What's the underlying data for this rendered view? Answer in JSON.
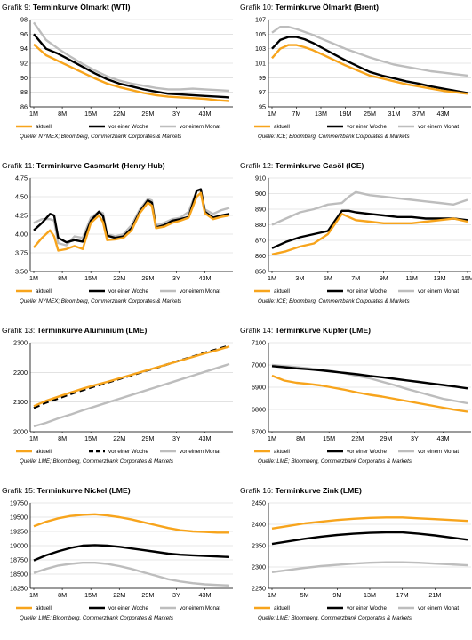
{
  "colors": {
    "aktuell": "#F7A41C",
    "woche": "#000000",
    "monat": "#BDBDBD",
    "grid": "#D0D0D0"
  },
  "chart_data": [
    {
      "type": "line",
      "prefix": "Grafik 9:",
      "title": "Terminkurve Ölmarkt (WTI)",
      "ylim": [
        86,
        98
      ],
      "yticks": [
        86,
        88,
        90,
        92,
        94,
        96,
        98
      ],
      "xticks": [
        "1M",
        "8M",
        "15M",
        "22M",
        "29M",
        "3Y",
        "43M"
      ],
      "grid": true,
      "source": "Quelle: NYMEX; Bloomberg, Commerzbank Corporates & Markets",
      "x": [
        "1M",
        "4M",
        "7M",
        "10M",
        "13M",
        "16M",
        "19M",
        "22M",
        "25M",
        "28M",
        "31M",
        "34M",
        "37M",
        "40M",
        "43M",
        "46M",
        "49M"
      ],
      "series": [
        {
          "name": "aktuell",
          "style": "aktuell",
          "values": [
            94.6,
            93.1,
            92.3,
            91.5,
            90.7,
            89.9,
            89.2,
            88.7,
            88.3,
            87.9,
            87.6,
            87.4,
            87.3,
            87.2,
            87.1,
            86.9,
            86.8
          ]
        },
        {
          "name": "vor einer Woche",
          "style": "woche",
          "values": [
            96.0,
            94.0,
            93.3,
            92.4,
            91.5,
            90.6,
            89.8,
            89.2,
            88.8,
            88.4,
            88.1,
            87.8,
            87.7,
            87.6,
            87.5,
            87.4,
            87.3
          ]
        },
        {
          "name": "vor einem Monat",
          "style": "monat",
          "values": [
            97.6,
            95.2,
            94.0,
            92.9,
            91.9,
            91.0,
            90.2,
            89.6,
            89.2,
            88.9,
            88.6,
            88.4,
            88.4,
            88.5,
            88.4,
            88.3,
            88.2
          ]
        }
      ]
    },
    {
      "type": "line",
      "prefix": "Grafik 10:",
      "title": "Terminkurve Ölmarkt (Brent)",
      "ylim": [
        95,
        107
      ],
      "yticks": [
        95,
        97,
        99,
        101,
        103,
        105,
        107
      ],
      "xticks": [
        "1M",
        "7M",
        "13M",
        "19M",
        "25M",
        "31M",
        "37M",
        "43M"
      ],
      "grid": true,
      "source": "Quelle: ICE; Bloomberg, Commerzbank Corporates & Markets",
      "x": [
        "1M",
        "3M",
        "5M",
        "7M",
        "9M",
        "11M",
        "13M",
        "16M",
        "19M",
        "22M",
        "25M",
        "28M",
        "31M",
        "34M",
        "37M",
        "40M",
        "43M",
        "46M",
        "49M"
      ],
      "series": [
        {
          "name": "aktuell",
          "style": "aktuell",
          "values": [
            101.7,
            103.0,
            103.5,
            103.5,
            103.2,
            102.8,
            102.3,
            101.5,
            100.7,
            100.0,
            99.3,
            98.9,
            98.5,
            98.1,
            97.8,
            97.5,
            97.2,
            97.0,
            96.8
          ]
        },
        {
          "name": "vor einer Woche",
          "style": "woche",
          "values": [
            103.0,
            104.2,
            104.6,
            104.6,
            104.3,
            103.8,
            103.2,
            102.3,
            101.4,
            100.6,
            99.8,
            99.3,
            98.9,
            98.5,
            98.2,
            97.8,
            97.5,
            97.2,
            96.9
          ]
        },
        {
          "name": "vor einem Monat",
          "style": "monat",
          "values": [
            105.2,
            106.0,
            106.0,
            105.7,
            105.3,
            104.9,
            104.4,
            103.7,
            103.0,
            102.4,
            101.8,
            101.3,
            100.8,
            100.5,
            100.2,
            99.9,
            99.7,
            99.5,
            99.3
          ]
        }
      ]
    },
    {
      "type": "line",
      "prefix": "Grafik 11:",
      "title": "Terminkurve Gasmarkt (Henry Hub)",
      "ylim": [
        3.5,
        4.75
      ],
      "yticks": [
        3.5,
        3.75,
        4.0,
        4.25,
        4.5,
        4.75
      ],
      "ydec": 2,
      "xticks": [
        "1M",
        "8M",
        "15M",
        "22M",
        "29M",
        "3Y",
        "43M"
      ],
      "grid": true,
      "source": "Quelle: NYMEX; Bloomberg, Commerzbank Corporates & Markets",
      "x": [
        "1M",
        "3M",
        "5M",
        "6M",
        "7M",
        "9M",
        "11M",
        "13M",
        "15M",
        "17M",
        "18M",
        "19M",
        "21M",
        "23M",
        "25M",
        "27M",
        "29M",
        "30M",
        "31M",
        "33M",
        "35M",
        "37M",
        "39M",
        "41M",
        "42M",
        "43M",
        "45M",
        "47M",
        "49M"
      ],
      "series": [
        {
          "name": "aktuell",
          "style": "aktuell",
          "values": [
            3.82,
            3.95,
            4.05,
            3.97,
            3.78,
            3.8,
            3.84,
            3.8,
            4.15,
            4.25,
            4.16,
            3.92,
            3.93,
            3.95,
            4.05,
            4.28,
            4.42,
            4.38,
            4.08,
            4.1,
            4.15,
            4.18,
            4.22,
            4.5,
            4.55,
            4.28,
            4.2,
            4.23,
            4.25
          ]
        },
        {
          "name": "vor einer Woche",
          "style": "woche",
          "values": [
            4.05,
            4.15,
            4.27,
            4.25,
            3.95,
            3.89,
            3.92,
            3.9,
            4.18,
            4.3,
            4.24,
            3.98,
            3.95,
            3.97,
            4.08,
            4.3,
            4.45,
            4.42,
            4.09,
            4.12,
            4.18,
            4.2,
            4.23,
            4.58,
            4.6,
            4.3,
            4.22,
            4.25,
            4.27
          ]
        },
        {
          "name": "vor einem Monat",
          "style": "monat",
          "values": [
            4.15,
            4.2,
            4.2,
            4.18,
            3.88,
            3.85,
            3.97,
            3.95,
            4.22,
            4.3,
            4.28,
            4.0,
            3.97,
            4.0,
            4.12,
            4.33,
            4.47,
            4.45,
            4.12,
            4.15,
            4.2,
            4.22,
            4.3,
            4.58,
            4.58,
            4.33,
            4.27,
            4.32,
            4.35
          ]
        }
      ]
    },
    {
      "type": "line",
      "prefix": "Grafik 12:",
      "title": "Terminkurve Gasöl (ICE)",
      "ylim": [
        850,
        910
      ],
      "yticks": [
        850,
        860,
        870,
        880,
        890,
        900,
        910
      ],
      "xticks": [
        "1M",
        "3M",
        "5M",
        "7M",
        "9M",
        "11M",
        "13M",
        "15M"
      ],
      "grid": true,
      "source": "Quelle: ICE; Bloomberg, Commerzbank Corporates & Markets",
      "x": [
        "1M",
        "2M",
        "3M",
        "4M",
        "5M",
        "6M",
        "6.5M",
        "7M",
        "8M",
        "9M",
        "10M",
        "11M",
        "12M",
        "13M",
        "14M",
        "15M"
      ],
      "series": [
        {
          "name": "aktuell",
          "style": "aktuell",
          "values": [
            861,
            863,
            866,
            868,
            874,
            887,
            885,
            883,
            882,
            881,
            881,
            881,
            882,
            883,
            884,
            882
          ]
        },
        {
          "name": "vor einer Woche",
          "style": "woche",
          "values": [
            865,
            869,
            872,
            874,
            876,
            889,
            889,
            888,
            887,
            886,
            885,
            885,
            884,
            884,
            884,
            883
          ]
        },
        {
          "name": "vor einem Monat",
          "style": "monat",
          "values": [
            880,
            884,
            888,
            890,
            893,
            894,
            898,
            901,
            899,
            898,
            897,
            896,
            895,
            894,
            893,
            896
          ]
        }
      ]
    },
    {
      "type": "line",
      "prefix": "Grafik 13:",
      "title": "Terminkurve Aluminium (LME)",
      "ylim": [
        2000,
        2300
      ],
      "yticks": [
        2000,
        2100,
        2200,
        2300
      ],
      "xticks": [
        "1M",
        "8M",
        "15M",
        "22M",
        "29M",
        "3Y",
        "43M"
      ],
      "grid": true,
      "source": "Quelle: LME; Bloomberg, Commerzbank Corporates & Markets",
      "x": [
        "1M",
        "4M",
        "7M",
        "10M",
        "13M",
        "16M",
        "19M",
        "22M",
        "25M",
        "28M",
        "31M",
        "34M",
        "37M",
        "40M",
        "43M",
        "46M",
        "49M"
      ],
      "series": [
        {
          "name": "aktuell",
          "style": "aktuell",
          "values": [
            2086,
            2104,
            2118,
            2132,
            2145,
            2157,
            2168,
            2180,
            2192,
            2204,
            2216,
            2228,
            2240,
            2252,
            2264,
            2275,
            2287
          ]
        },
        {
          "name": "vor einer Woche",
          "style": "woche",
          "dash": true,
          "values": [
            2080,
            2098,
            2112,
            2127,
            2140,
            2153,
            2165,
            2178,
            2190,
            2203,
            2215,
            2228,
            2241,
            2253,
            2266,
            2278,
            2290
          ]
        },
        {
          "name": "vor einem Monat",
          "style": "monat",
          "values": [
            2018,
            2030,
            2045,
            2058,
            2072,
            2085,
            2098,
            2111,
            2124,
            2137,
            2150,
            2163,
            2176,
            2189,
            2202,
            2215,
            2228
          ]
        }
      ]
    },
    {
      "type": "line",
      "prefix": "Grafik 14:",
      "title": "Terminkurve Kupfer (LME)",
      "ylim": [
        6700,
        7100
      ],
      "yticks": [
        6700,
        6800,
        6900,
        7000,
        7100
      ],
      "xticks": [
        "1M",
        "8M",
        "15M",
        "22M",
        "29M",
        "3Y",
        "43M"
      ],
      "grid": true,
      "source": "Quelle: LME; Bloomberg, Commerzbank Corporates & Markets",
      "x": [
        "1M",
        "4M",
        "7M",
        "10M",
        "13M",
        "16M",
        "19M",
        "22M",
        "25M",
        "28M",
        "31M",
        "34M",
        "37M",
        "40M",
        "43M",
        "46M",
        "49M"
      ],
      "series": [
        {
          "name": "aktuell",
          "style": "aktuell",
          "values": [
            6952,
            6930,
            6920,
            6915,
            6908,
            6898,
            6888,
            6876,
            6866,
            6858,
            6848,
            6838,
            6828,
            6818,
            6808,
            6798,
            6790
          ]
        },
        {
          "name": "vor einer Woche",
          "style": "woche",
          "values": [
            6995,
            6990,
            6985,
            6981,
            6976,
            6970,
            6964,
            6958,
            6951,
            6945,
            6938,
            6931,
            6924,
            6917,
            6910,
            6903,
            6895
          ]
        },
        {
          "name": "vor einem Monat",
          "style": "monat",
          "values": [
            7000,
            6995,
            6990,
            6985,
            6978,
            6972,
            6962,
            6950,
            6940,
            6925,
            6910,
            6893,
            6878,
            6863,
            6848,
            6838,
            6828
          ]
        }
      ]
    },
    {
      "type": "line",
      "prefix": "Grafik 15:",
      "title": "Terminkurve Nickel (LME)",
      "ylim": [
        18250,
        19750
      ],
      "yticks": [
        18250,
        18500,
        18750,
        19000,
        19250,
        19500,
        19750
      ],
      "xticks": [
        "1M",
        "8M",
        "15M",
        "22M",
        "29M",
        "3Y",
        "43M"
      ],
      "grid": true,
      "source": "Quelle: LME; Bloomberg, Commerzbank Corporates & Markets",
      "x": [
        "1M",
        "4M",
        "7M",
        "10M",
        "13M",
        "16M",
        "19M",
        "22M",
        "25M",
        "28M",
        "31M",
        "34M",
        "37M",
        "40M",
        "43M",
        "46M",
        "49M"
      ],
      "series": [
        {
          "name": "aktuell",
          "style": "aktuell",
          "values": [
            19340,
            19420,
            19480,
            19520,
            19540,
            19550,
            19530,
            19500,
            19460,
            19410,
            19360,
            19310,
            19270,
            19250,
            19240,
            19230,
            19230
          ]
        },
        {
          "name": "vor einer Woche",
          "style": "woche",
          "values": [
            18740,
            18830,
            18900,
            18960,
            19000,
            19010,
            19000,
            18980,
            18950,
            18920,
            18890,
            18860,
            18840,
            18830,
            18820,
            18810,
            18800
          ]
        },
        {
          "name": "vor einem Monat",
          "style": "monat",
          "values": [
            18520,
            18590,
            18650,
            18680,
            18700,
            18700,
            18680,
            18640,
            18590,
            18530,
            18470,
            18410,
            18370,
            18340,
            18320,
            18310,
            18300
          ]
        }
      ]
    },
    {
      "type": "line",
      "prefix": "Grafik 16:",
      "title": "Terminkurve Zink (LME)",
      "ylim": [
        2250,
        2450
      ],
      "yticks": [
        2250,
        2300,
        2350,
        2400,
        2450
      ],
      "xticks": [
        "1M",
        "5M",
        "9M",
        "13M",
        "17M",
        "21M"
      ],
      "grid": true,
      "source": "Quelle: LME; Bloomberg, Commerzbank Corporates & Markets",
      "x": [
        "1M",
        "3M",
        "5M",
        "7M",
        "9M",
        "11M",
        "13M",
        "15M",
        "17M",
        "19M",
        "21M",
        "23M",
        "25M"
      ],
      "series": [
        {
          "name": "aktuell",
          "style": "aktuell",
          "values": [
            2390,
            2396,
            2402,
            2406,
            2410,
            2413,
            2415,
            2416,
            2416,
            2414,
            2412,
            2410,
            2408
          ]
        },
        {
          "name": "vor einer Woche",
          "style": "woche",
          "values": [
            2354,
            2360,
            2366,
            2371,
            2375,
            2378,
            2380,
            2381,
            2381,
            2378,
            2374,
            2369,
            2364
          ]
        },
        {
          "name": "vor einem Monat",
          "style": "monat",
          "values": [
            2288,
            2293,
            2298,
            2302,
            2305,
            2308,
            2310,
            2311,
            2311,
            2310,
            2308,
            2306,
            2304
          ]
        }
      ]
    }
  ]
}
